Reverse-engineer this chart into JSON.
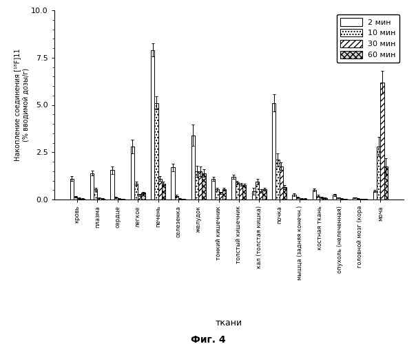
{
  "categories": [
    "кровь",
    "плазма",
    "сердце",
    "легкое",
    "печень",
    "селезенка",
    "желудок",
    "тонкий кишечник",
    "толстый кишечник",
    "кал (толстая кишка)",
    "почка",
    "мышца (задняя конечн.)",
    "костная ткань",
    "опухоль (нелеченная)",
    "головной мозг (кора",
    "моча"
  ],
  "values_2min": [
    1.1,
    1.4,
    1.55,
    2.8,
    7.9,
    1.7,
    3.4,
    1.1,
    1.2,
    0.45,
    5.1,
    0.25,
    0.5,
    0.25,
    0.1,
    0.45
  ],
  "values_10min": [
    0.15,
    0.55,
    0.1,
    0.85,
    5.1,
    0.2,
    1.5,
    0.55,
    0.9,
    0.95,
    2.1,
    0.1,
    0.2,
    0.1,
    0.05,
    2.8
  ],
  "values_30min": [
    0.08,
    0.08,
    0.05,
    0.25,
    1.1,
    0.05,
    1.5,
    0.35,
    0.8,
    0.45,
    1.75,
    0.05,
    0.1,
    0.05,
    0.03,
    6.2
  ],
  "values_60min": [
    0.05,
    0.05,
    0.03,
    0.35,
    0.85,
    0.03,
    1.4,
    0.55,
    0.75,
    0.55,
    0.65,
    0.05,
    0.08,
    0.03,
    0.02,
    1.75
  ],
  "errors_2min": [
    0.12,
    0.12,
    0.2,
    0.35,
    0.35,
    0.2,
    0.55,
    0.1,
    0.12,
    0.18,
    0.45,
    0.06,
    0.08,
    0.05,
    0.02,
    0.05
  ],
  "errors_10min": [
    0.05,
    0.08,
    0.04,
    0.1,
    0.35,
    0.05,
    0.3,
    0.08,
    0.1,
    0.15,
    0.35,
    0.04,
    0.04,
    0.02,
    0.015,
    0.5
  ],
  "errors_30min": [
    0.03,
    0.02,
    0.02,
    0.05,
    0.12,
    0.02,
    0.25,
    0.05,
    0.08,
    0.08,
    0.2,
    0.02,
    0.03,
    0.02,
    0.01,
    0.6
  ],
  "errors_60min": [
    0.02,
    0.02,
    0.015,
    0.06,
    0.08,
    0.015,
    0.2,
    0.06,
    0.07,
    0.07,
    0.1,
    0.02,
    0.02,
    0.01,
    0.008,
    0.45
  ],
  "ylabel_line1": "Накопление соединения [¹⁸F]11",
  "ylabel_line2": "(% вводимой дозы/г)",
  "xlabel": "ткани",
  "title": "Фиг. 4",
  "ylim": [
    0,
    10.0
  ],
  "yticks": [
    0.0,
    2.5,
    5.0,
    7.5,
    10.0
  ],
  "ytick_labels": [
    "0.0",
    "2.5",
    "5.0",
    "7.5",
    "10.0"
  ],
  "legend_labels": [
    "2 мин",
    "10 мин",
    "30 мин",
    "60 мин"
  ],
  "bar_width": 0.18,
  "figsize": [
    6.04,
    5.0
  ],
  "dpi": 100
}
